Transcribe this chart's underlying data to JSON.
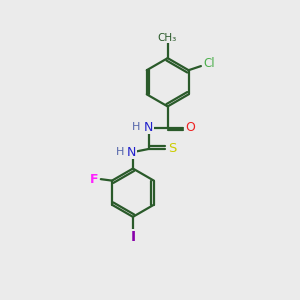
{
  "background_color": "#ebebeb",
  "bond_color": "#2a5a2a",
  "atom_colors": {
    "Cl": "#4caf4c",
    "O": "#ee2222",
    "S": "#cccc00",
    "F": "#ff22ff",
    "I": "#8800aa",
    "N": "#2222cc",
    "C": "#2a5a2a",
    "H": "#5566aa"
  },
  "figsize": [
    3.0,
    3.0
  ],
  "dpi": 100
}
